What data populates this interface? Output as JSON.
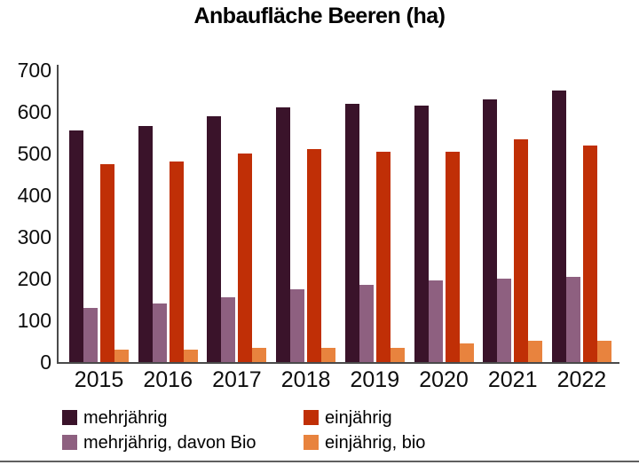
{
  "chart_data": {
    "type": "bar",
    "title": "Anbaufläche Beeren (ha)",
    "categories": [
      "2015",
      "2016",
      "2017",
      "2018",
      "2019",
      "2020",
      "2021",
      "2022"
    ],
    "series": [
      {
        "name": "mehrjährig",
        "color": "#3a132a",
        "values": [
          555,
          565,
          590,
          610,
          620,
          615,
          630,
          650
        ]
      },
      {
        "name": "mehrjährig, davon Bio",
        "color": "#8e6080",
        "values": [
          130,
          140,
          155,
          175,
          185,
          195,
          200,
          205
        ]
      },
      {
        "name": "einjährig",
        "color": "#c02f06",
        "values": [
          475,
          480,
          500,
          510,
          505,
          505,
          535,
          520
        ]
      },
      {
        "name": "einjährig, bio",
        "color": "#e8833e",
        "values": [
          30,
          30,
          35,
          35,
          35,
          45,
          50,
          50
        ]
      }
    ],
    "ylabel": "",
    "xlabel": "",
    "ylim": [
      0,
      700
    ],
    "ytick_step": 100,
    "grid": false,
    "legend_position": "bottom",
    "legend_grid": [
      [
        "mehrjährig",
        "einjährig"
      ],
      [
        "mehrjährig, davon Bio",
        "einjährig, bio"
      ]
    ],
    "axis_color": "#4a4a4a"
  },
  "page": {
    "background": "#ffffff",
    "bottom_border_color": "#606060"
  }
}
